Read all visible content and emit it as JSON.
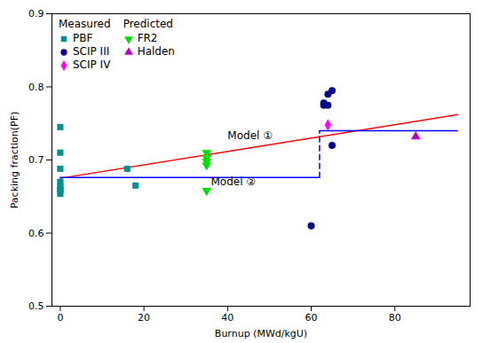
{
  "chart_data": {
    "type": "scatter",
    "xlabel": "Burnup (MWd/kgU)",
    "ylabel": "Packing fraction(PF)",
    "xlim": [
      -2,
      98
    ],
    "ylim": [
      0.5,
      0.9
    ],
    "xticks": [
      0,
      20,
      40,
      60,
      80
    ],
    "yticks": [
      0.5,
      0.6,
      0.7,
      0.8,
      0.9
    ],
    "grid": false,
    "legend": "upper left",
    "series": [
      {
        "type": "line",
        "color": "red",
        "line_style": "solid",
        "x": [
          0,
          95
        ],
        "values": [
          0.675,
          0.762
        ]
      },
      {
        "type": "line",
        "color": "blue",
        "line_style": "solid",
        "x": [
          0,
          62
        ],
        "values": [
          0.676,
          0.676
        ]
      },
      {
        "type": "line",
        "color": "blue",
        "line_style": "dashed",
        "x": [
          62,
          62
        ],
        "values": [
          0.676,
          0.74
        ]
      },
      {
        "type": "line",
        "color": "blue",
        "line_style": "solid",
        "x": [
          62,
          95
        ],
        "values": [
          0.74,
          0.74
        ]
      },
      {
        "type": "scatter",
        "name": "PBF",
        "group": "Measured",
        "color": "#009090",
        "marker": "square",
        "x": [
          0,
          0,
          0,
          0,
          0,
          0,
          0,
          0,
          16,
          18
        ],
        "values": [
          0.745,
          0.71,
          0.688,
          0.67,
          0.664,
          0.66,
          0.658,
          0.654,
          0.688,
          0.665
        ]
      },
      {
        "type": "scatter",
        "name": "SCIP III",
        "group": "Measured",
        "color": "#00008B",
        "marker": "circle",
        "x": [
          60,
          63,
          63,
          64,
          64,
          65,
          65
        ],
        "values": [
          0.61,
          0.775,
          0.778,
          0.775,
          0.79,
          0.795,
          0.72
        ]
      },
      {
        "type": "scatter",
        "name": "SCIP IV",
        "group": "Measured",
        "color": "#FF00FF",
        "marker": "diamond",
        "x": [
          64
        ],
        "values": [
          0.748
        ]
      },
      {
        "type": "scatter",
        "name": "FR2",
        "group": "Predicted",
        "color": "#00DD00",
        "marker": "triangle-down",
        "x": [
          35,
          35,
          35,
          35,
          35
        ],
        "values": [
          0.71,
          0.703,
          0.698,
          0.693,
          0.658
        ]
      },
      {
        "type": "scatter",
        "name": "Halden",
        "group": "Predicted",
        "color": "#BB00BB",
        "marker": "triangle-up",
        "x": [
          85
        ],
        "values": [
          0.732
        ]
      }
    ],
    "annotations": [
      {
        "text": "Model ①",
        "x": 40,
        "y": 0.728
      },
      {
        "text": "Model ②",
        "x": 36,
        "y": 0.666
      }
    ]
  }
}
